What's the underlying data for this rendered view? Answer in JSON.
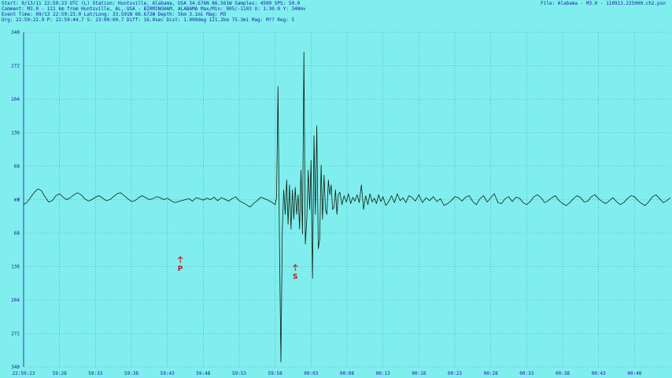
{
  "header": {
    "line1": "Start: 9/13/11 22:59:23 UTC (L) Station: Huntsville, Alabama, USA 34.676N 86.561W Samples: 4500  SPS: 50.0",
    "line2": "Comment: M3.0 - 121 km from Huntsville, AL, USA - BIRMINGHAM, ALABAMA   Max/Min: 905/-1103 X: 1:30.0 Y: 340mv",
    "line3": "Event Time: 09/13 22:59:23.0 Lat/Long: 33.591N 86.672W Depth: 5km 3.1mi Mag: M3",
    "line4": "Org: 22:59:22.9 P: 22:59:44.7 S: 23:00:00.7 Diff: 16.0sec Dist: 1.090deg 121.2km 75.3mi  Mag: M??  Reg: 5",
    "file": "File: Alabama - M3.0 - 110913.225000.ch2.psn"
  },
  "chart_data": {
    "type": "line",
    "ylabel": "mv",
    "channel_label": "E",
    "y_tick_labels": [
      "340",
      "272",
      "204",
      "136",
      "68",
      "mv",
      "68",
      "136",
      "204",
      "272",
      "340"
    ],
    "ylim": [
      -340,
      340
    ],
    "x_tick_labels": [
      "22:59:23",
      "59:28",
      "59:33",
      "59:38",
      "59:43",
      "59:48",
      "59:53",
      "59:58",
      "00:03",
      "00:08",
      "00:13",
      "00:18",
      "00:23",
      "00:28",
      "00:33",
      "00:38",
      "00:43",
      "00:48"
    ],
    "duration_sec": 90,
    "grid": true,
    "phase_markers": [
      {
        "label": "P",
        "time_sec": 21.8
      },
      {
        "label": "S",
        "time_sec": 37.8
      }
    ],
    "series": [
      {
        "color": "#102010",
        "x": [
          0,
          0.5,
          1,
          1.5,
          2,
          2.5,
          3,
          3.5,
          4,
          4.5,
          5,
          5.5,
          6,
          6.5,
          7,
          7.5,
          8,
          8.5,
          9,
          9.5,
          10,
          10.5,
          11,
          11.5,
          12,
          12.5,
          13,
          13.5,
          14,
          14.5,
          15,
          15.5,
          16,
          16.5,
          17,
          17.5,
          18,
          18.5,
          19,
          19.5,
          20,
          20.5,
          21,
          21.5,
          22,
          22.5,
          23,
          23.5,
          24,
          24.5,
          25,
          25.5,
          26,
          26.5,
          27,
          27.5,
          28,
          28.5,
          29,
          29.5,
          30,
          30.5,
          31,
          31.5,
          32,
          32.5,
          33,
          33.5,
          34,
          34.5,
          35,
          35.2,
          35.4,
          35.6,
          35.8,
          36,
          36.2,
          36.4,
          36.6,
          36.8,
          37,
          37.2,
          37.4,
          37.6,
          37.8,
          38,
          38.2,
          38.4,
          38.6,
          38.8,
          39,
          39.2,
          39.4,
          39.6,
          39.8,
          40,
          40.2,
          40.4,
          40.6,
          40.8,
          41,
          41.2,
          41.4,
          41.6,
          41.8,
          42,
          42.2,
          42.4,
          42.6,
          42.8,
          43,
          43.2,
          43.4,
          43.6,
          43.8,
          44,
          44.3,
          44.6,
          44.9,
          45.2,
          45.5,
          45.8,
          46.1,
          46.4,
          46.7,
          47,
          47.3,
          47.6,
          47.9,
          48.2,
          48.5,
          48.8,
          49.1,
          49.4,
          49.7,
          50,
          50.4,
          50.8,
          51.2,
          51.6,
          52,
          52.4,
          52.8,
          53.2,
          53.6,
          54,
          54.5,
          55,
          55.5,
          56,
          56.5,
          57,
          57.5,
          58,
          58.5,
          59,
          59.5,
          60,
          60.5,
          61,
          61.5,
          62,
          62.5,
          63,
          63.5,
          64,
          64.5,
          65,
          65.5,
          66,
          66.5,
          67,
          67.5,
          68,
          68.5,
          69,
          69.5,
          70,
          70.5,
          71,
          71.5,
          72,
          72.5,
          73,
          73.5,
          74,
          74.5,
          75,
          75.5,
          76,
          76.5,
          77,
          77.5,
          78,
          78.5,
          79,
          79.5,
          80,
          80.5,
          81,
          81.5,
          82,
          82.5,
          83,
          83.5,
          84,
          84.5,
          85,
          85.5,
          86,
          86.5,
          87,
          87.5,
          88,
          88.5,
          89,
          89.5,
          90
        ],
        "y": [
          -10,
          -5,
          5,
          15,
          22,
          18,
          5,
          -5,
          -2,
          8,
          12,
          5,
          0,
          4,
          10,
          14,
          10,
          2,
          -3,
          0,
          5,
          8,
          3,
          -2,
          0,
          6,
          12,
          14,
          8,
          2,
          -4,
          -2,
          4,
          8,
          4,
          0,
          2,
          6,
          4,
          0,
          3,
          -2,
          -6,
          -4,
          -2,
          0,
          2,
          -3,
          4,
          2,
          -1,
          3,
          0,
          5,
          -2,
          4,
          1,
          -3,
          2,
          6,
          -2,
          -6,
          -10,
          -15,
          -8,
          -2,
          5,
          2,
          -1,
          -5,
          -10,
          5,
          230,
          -80,
          -330,
          -60,
          20,
          -30,
          40,
          -50,
          30,
          -60,
          20,
          -40,
          25,
          -30,
          10,
          -60,
          60,
          -70,
          300,
          -90,
          -40,
          60,
          -20,
          80,
          -160,
          130,
          -30,
          150,
          -100,
          -80,
          70,
          -40,
          50,
          -20,
          -30,
          40,
          10,
          30,
          -20,
          -15,
          20,
          -30,
          10,
          15,
          -10,
          8,
          -5,
          12,
          -8,
          5,
          -3,
          10,
          -6,
          30,
          -20,
          8,
          -10,
          12,
          -5,
          3,
          -8,
          10,
          -4,
          6,
          -12,
          -4,
          8,
          -6,
          12,
          -2,
          4,
          -6,
          8,
          5,
          -3,
          10,
          -6,
          4,
          -2,
          6,
          -4,
          2,
          -12,
          -8,
          -2,
          6,
          4,
          -3,
          5,
          8,
          -4,
          -10,
          2,
          8,
          -5,
          4,
          12,
          -6,
          -8,
          2,
          6,
          -4,
          5,
          3,
          -6,
          -10,
          -4,
          6,
          10,
          4,
          -6,
          -2,
          4,
          8,
          -2,
          -8,
          -12,
          -6,
          2,
          8,
          4,
          -5,
          -3,
          6,
          10,
          2,
          -4,
          -8,
          -2,
          4,
          -4,
          -10,
          -6,
          2,
          8,
          6,
          -2,
          -8,
          -12,
          -4,
          6,
          10,
          2,
          -6,
          -2,
          4
        ]
      }
    ]
  }
}
